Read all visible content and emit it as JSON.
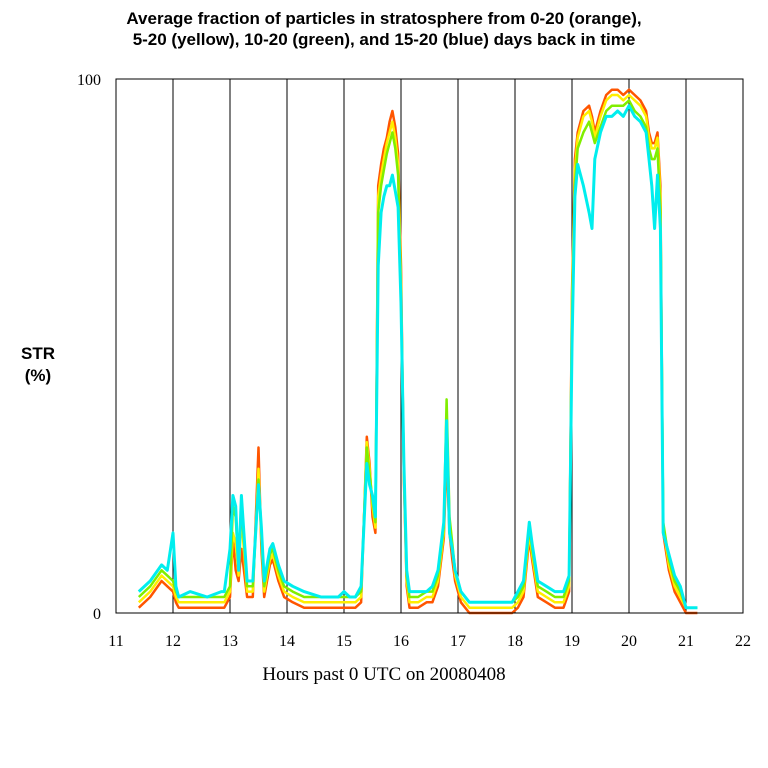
{
  "chart_data": {
    "type": "line",
    "title_line1": "Average fraction of particles in stratosphere from 0-20 (orange),",
    "title_line2": "5-20 (yellow), 10-20 (green), and 15-20 (blue) days back in time",
    "ylabel_line1": "STR",
    "ylabel_line2": "(%)",
    "xlabel": "Hours past 0 UTC on 20080408",
    "xlim": [
      11,
      22
    ],
    "ylim": [
      0,
      100
    ],
    "xticks": [
      11,
      12,
      13,
      14,
      15,
      16,
      17,
      18,
      19,
      20,
      21,
      22
    ],
    "yticks": [
      0,
      100
    ],
    "vertical_gridlines": [
      12,
      13,
      14,
      15,
      16,
      17,
      18,
      19,
      20,
      21
    ],
    "x": [
      11.4,
      11.6,
      11.8,
      11.9,
      12.0,
      12.05,
      12.1,
      12.3,
      12.6,
      12.85,
      12.9,
      13.0,
      13.05,
      13.1,
      13.15,
      13.2,
      13.3,
      13.4,
      13.5,
      13.55,
      13.6,
      13.7,
      13.75,
      13.85,
      13.95,
      14.1,
      14.3,
      14.6,
      14.9,
      15.0,
      15.1,
      15.2,
      15.3,
      15.4,
      15.45,
      15.5,
      15.55,
      15.6,
      15.65,
      15.7,
      15.75,
      15.8,
      15.85,
      15.9,
      15.95,
      16.0,
      16.05,
      16.1,
      16.15,
      16.3,
      16.45,
      16.55,
      16.65,
      16.75,
      16.8,
      16.85,
      16.9,
      16.95,
      17.05,
      17.2,
      17.5,
      17.8,
      17.95,
      18.05,
      18.15,
      18.25,
      18.3,
      18.4,
      18.55,
      18.7,
      18.85,
      18.95,
      19.0,
      19.05,
      19.1,
      19.2,
      19.3,
      19.35,
      19.4,
      19.5,
      19.6,
      19.7,
      19.8,
      19.9,
      20.0,
      20.1,
      20.2,
      20.3,
      20.35,
      20.4,
      20.45,
      20.5,
      20.55,
      20.6,
      20.7,
      20.8,
      20.9,
      21.0,
      21.1,
      21.2
    ],
    "series": [
      {
        "name": "0-20 (orange)",
        "color": "#ff5500",
        "width": 2.5,
        "values": [
          1,
          3,
          6,
          5,
          4,
          2,
          1,
          1,
          1,
          1,
          1,
          3,
          14,
          8,
          6,
          12,
          3,
          3,
          31,
          12,
          3,
          9,
          10,
          6,
          3,
          2,
          1,
          1,
          1,
          1,
          1,
          1,
          2,
          33,
          28,
          18,
          15,
          80,
          84,
          87,
          89,
          92,
          94,
          91,
          86,
          65,
          25,
          5,
          1,
          1,
          2,
          2,
          5,
          14,
          30,
          15,
          10,
          6,
          2,
          0,
          0,
          0,
          0,
          1,
          3,
          14,
          10,
          3,
          2,
          1,
          1,
          4,
          60,
          85,
          90,
          94,
          95,
          93,
          90,
          94,
          97,
          98,
          98,
          97,
          98,
          97,
          96,
          94,
          90,
          88,
          88,
          90,
          80,
          15,
          8,
          4,
          2,
          0,
          0,
          0
        ]
      },
      {
        "name": "5-20 (yellow)",
        "color": "#ffee00",
        "width": 2.5,
        "values": [
          2,
          4,
          7,
          6,
          5,
          3,
          2,
          2,
          2,
          2,
          2,
          4,
          15,
          13,
          7,
          18,
          4,
          4,
          27,
          14,
          4,
          10,
          11,
          7,
          4,
          3,
          2,
          2,
          2,
          2,
          2,
          2,
          3,
          32,
          27,
          20,
          16,
          78,
          82,
          85,
          88,
          90,
          92,
          89,
          84,
          62,
          26,
          6,
          2,
          2,
          3,
          3,
          6,
          15,
          34,
          17,
          12,
          7,
          3,
          1,
          1,
          1,
          1,
          2,
          4,
          15,
          11,
          4,
          3,
          2,
          2,
          5,
          58,
          83,
          89,
          93,
          94,
          92,
          89,
          93,
          96,
          97,
          97,
          96,
          97,
          96,
          95,
          93,
          89,
          87,
          87,
          89,
          78,
          16,
          9,
          5,
          3,
          1,
          1,
          1
        ]
      },
      {
        "name": "10-20 (green)",
        "color": "#80ee00",
        "width": 2.5,
        "values": [
          3,
          5,
          8,
          7,
          6,
          4,
          3,
          3,
          3,
          3,
          3,
          5,
          20,
          18,
          8,
          20,
          5,
          5,
          25,
          15,
          5,
          11,
          12,
          8,
          5,
          4,
          3,
          3,
          3,
          3,
          3,
          3,
          4,
          31,
          26,
          21,
          17,
          75,
          80,
          83,
          86,
          88,
          90,
          87,
          82,
          60,
          27,
          7,
          3,
          3,
          4,
          4,
          7,
          16,
          40,
          18,
          13,
          8,
          4,
          2,
          2,
          2,
          2,
          3,
          5,
          16,
          12,
          5,
          4,
          3,
          3,
          6,
          55,
          80,
          87,
          90,
          92,
          90,
          88,
          91,
          94,
          95,
          95,
          95,
          96,
          94,
          93,
          91,
          87,
          85,
          85,
          87,
          75,
          17,
          10,
          6,
          4,
          1,
          1,
          1
        ]
      },
      {
        "name": "15-20 (blue)",
        "color": "#00eeee",
        "width": 3,
        "values": [
          4,
          6,
          9,
          8,
          15,
          5,
          3,
          4,
          3,
          4,
          4,
          12,
          22,
          20,
          8,
          22,
          6,
          6,
          24,
          16,
          6,
          12,
          13,
          9,
          6,
          5,
          4,
          3,
          3,
          4,
          3,
          3,
          5,
          28,
          24,
          22,
          18,
          65,
          75,
          78,
          80,
          80,
          82,
          79,
          76,
          58,
          28,
          8,
          4,
          4,
          4,
          5,
          8,
          17,
          36,
          15,
          12,
          8,
          4,
          2,
          2,
          2,
          2,
          4,
          6,
          17,
          13,
          6,
          5,
          4,
          4,
          7,
          50,
          78,
          84,
          80,
          75,
          72,
          85,
          90,
          93,
          93,
          94,
          93,
          95,
          93,
          92,
          90,
          85,
          80,
          72,
          82,
          72,
          15,
          11,
          7,
          5,
          1,
          1,
          1
        ]
      }
    ]
  }
}
